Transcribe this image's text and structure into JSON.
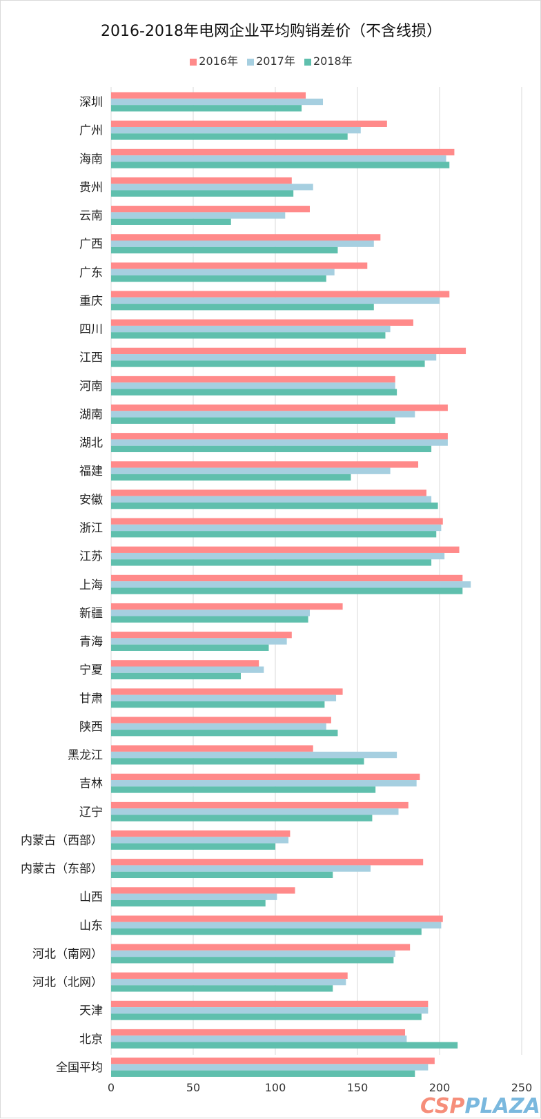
{
  "chart_data": {
    "type": "bar",
    "orientation": "horizontal",
    "title": "2016-2018年电网企业平均购销差价（不含线损）",
    "xlabel": "",
    "ylabel": "",
    "xlim": [
      0,
      250
    ],
    "xticks": [
      0,
      50,
      100,
      150,
      200,
      250
    ],
    "grid": true,
    "legend": "top",
    "categories": [
      "深圳",
      "广州",
      "海南",
      "贵州",
      "云南",
      "广西",
      "广东",
      "重庆",
      "四川",
      "江西",
      "河南",
      "湖南",
      "湖北",
      "福建",
      "安徽",
      "浙江",
      "江苏",
      "上海",
      "新疆",
      "青海",
      "宁夏",
      "甘肃",
      "陕西",
      "黑龙江",
      "吉林",
      "辽宁",
      "内蒙古（西部）",
      "内蒙古（东部）",
      "山西",
      "山东",
      "河北（南网）",
      "河北（北网）",
      "天津",
      "北京",
      "全国平均"
    ],
    "series": [
      {
        "name": "2016年",
        "color": "#ff8a8a",
        "values": [
          118.5,
          168,
          209,
          110,
          121,
          164,
          156,
          206,
          184,
          216,
          173,
          205,
          205,
          187,
          192,
          202,
          212,
          214,
          141,
          110,
          90,
          141,
          134,
          123,
          188,
          181,
          109,
          190,
          112,
          202,
          182,
          144,
          193,
          179,
          197
        ]
      },
      {
        "name": "2017年",
        "color": "#a6cfe0",
        "values": [
          129,
          152,
          204,
          123,
          106,
          160,
          136,
          200,
          170,
          198,
          173,
          185,
          205,
          170,
          195,
          201,
          203,
          219,
          121,
          107,
          93,
          137,
          131,
          174,
          186,
          175,
          108,
          158,
          101,
          201,
          173,
          143,
          193,
          180,
          193
        ]
      },
      {
        "name": "2018年",
        "color": "#5fbfad",
        "values": [
          116,
          144,
          206,
          111,
          73,
          138,
          131,
          160,
          167,
          191,
          174,
          173,
          195,
          146,
          199,
          198,
          195,
          214,
          120,
          96,
          79,
          130,
          138,
          154,
          161,
          159,
          100,
          135,
          94,
          189,
          172,
          135,
          189,
          211,
          185
        ]
      }
    ]
  },
  "watermark": {
    "text_a": "CSP",
    "text_b": "PLAZA",
    "color_a": "#f4735a",
    "color_b": "#5aa7d6"
  }
}
